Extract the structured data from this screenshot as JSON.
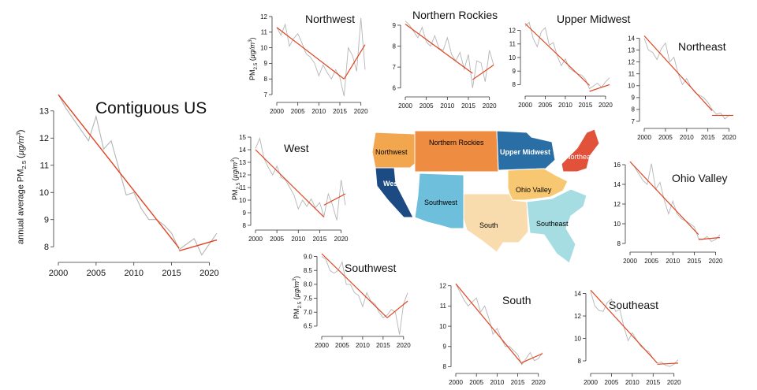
{
  "accents": {
    "trend": "#e0431f",
    "raw": "#b5b5b5",
    "axis": "#333333"
  },
  "ylabel_main": "annual average PM2.5 (µg/m³)",
  "ylabel_small": "PM2.5 (µg/m³)",
  "chart_data": [
    {
      "id": "us",
      "type": "line",
      "title": "Contiguous US",
      "xlabel": "",
      "ylabel": "annual average PM2.5 (µg/m³)",
      "xlim": [
        2000,
        2021
      ],
      "ylim": [
        7.6,
        13.4
      ],
      "xticks": [
        "2000",
        "2005",
        "2010",
        "2015",
        "2020"
      ],
      "yticks": [
        "8",
        "9",
        "10",
        "11",
        "12",
        "13"
      ],
      "x": [
        2000,
        2001,
        2002,
        2003,
        2004,
        2005,
        2006,
        2007,
        2008,
        2009,
        2010,
        2011,
        2012,
        2013,
        2014,
        2015,
        2016,
        2017,
        2018,
        2019,
        2020,
        2021
      ],
      "series": [
        {
          "values": [
            13.6,
            13.1,
            12.7,
            12.3,
            11.9,
            12.8,
            11.6,
            11.9,
            10.9,
            9.9,
            10.0,
            9.4,
            9.0,
            9.0,
            8.8,
            8.5,
            7.9,
            8.1,
            8.3,
            7.7,
            8.1,
            8.5
          ]
        }
      ],
      "trend": [
        {
          "x": [
            2000,
            2016
          ],
          "y": [
            13.6,
            7.95
          ]
        },
        {
          "x": [
            2016,
            2021
          ],
          "y": [
            7.85,
            8.25
          ]
        }
      ]
    },
    {
      "id": "northwest",
      "type": "line",
      "title": "Northwest",
      "ylabel": "PM2.5 (µg/m³)",
      "xlim": [
        2000,
        2021
      ],
      "ylim": [
        6.8,
        12.1
      ],
      "xticks": [
        "2000",
        "2005",
        "2010",
        "2015",
        "2020"
      ],
      "yticks": [
        "7",
        "8",
        "9",
        "10",
        "11",
        "12"
      ],
      "x": [
        2000,
        2001,
        2002,
        2003,
        2004,
        2005,
        2006,
        2007,
        2008,
        2009,
        2010,
        2011,
        2012,
        2013,
        2014,
        2015,
        2016,
        2017,
        2018,
        2019,
        2020,
        2021
      ],
      "series": [
        {
          "values": [
            11.3,
            10.8,
            11.5,
            10.1,
            10.6,
            10.9,
            10.3,
            9.6,
            9.4,
            9.0,
            8.2,
            8.9,
            8.4,
            8.0,
            8.6,
            8.1,
            6.9,
            10.0,
            9.5,
            8.5,
            11.9,
            8.6
          ]
        }
      ],
      "trend": [
        {
          "x": [
            2000,
            2016
          ],
          "y": [
            11.3,
            8.0
          ]
        },
        {
          "x": [
            2016,
            2021
          ],
          "y": [
            8.0,
            10.2
          ]
        }
      ]
    },
    {
      "id": "northern-rockies",
      "type": "line",
      "title": "Northern Rockies",
      "xlim": [
        2000,
        2021
      ],
      "ylim": [
        5.8,
        9.3
      ],
      "xticks": [
        "2000",
        "2005",
        "2010",
        "2015",
        "2020"
      ],
      "yticks": [
        "6",
        "7",
        "8",
        "9"
      ],
      "x": [
        2000,
        2001,
        2002,
        2003,
        2004,
        2005,
        2006,
        2007,
        2008,
        2009,
        2010,
        2011,
        2012,
        2013,
        2014,
        2015,
        2016,
        2017,
        2018,
        2019,
        2020,
        2021
      ],
      "series": [
        {
          "values": [
            9.2,
            9.0,
            8.7,
            8.4,
            8.9,
            8.2,
            8.0,
            8.5,
            7.9,
            7.8,
            8.4,
            7.6,
            7.3,
            7.7,
            6.9,
            7.6,
            6.0,
            7.3,
            7.2,
            6.3,
            7.8,
            7.1
          ]
        }
      ],
      "trend": [
        {
          "x": [
            2000,
            2016
          ],
          "y": [
            9.05,
            6.7
          ]
        },
        {
          "x": [
            2016,
            2021
          ],
          "y": [
            6.4,
            7.1
          ]
        }
      ]
    },
    {
      "id": "upper-midwest",
      "type": "line",
      "title": "Upper Midwest",
      "xlim": [
        2000,
        2021
      ],
      "ylim": [
        7.5,
        12.5
      ],
      "xticks": [
        "2000",
        "2005",
        "2010",
        "2015",
        "2020"
      ],
      "yticks": [
        "8",
        "9",
        "10",
        "11",
        "12"
      ],
      "x": [
        2000,
        2001,
        2002,
        2003,
        2004,
        2005,
        2006,
        2007,
        2008,
        2009,
        2010,
        2011,
        2012,
        2013,
        2014,
        2015,
        2016,
        2017,
        2018,
        2019,
        2020,
        2021
      ],
      "series": [
        {
          "values": [
            12.3,
            12.6,
            11.4,
            10.8,
            11.9,
            12.2,
            10.9,
            11.1,
            10.1,
            9.4,
            9.9,
            9.2,
            9.0,
            8.8,
            8.7,
            8.4,
            7.7,
            7.9,
            8.1,
            7.8,
            8.2,
            8.5
          ]
        }
      ],
      "trend": [
        {
          "x": [
            2000,
            2016
          ],
          "y": [
            12.5,
            7.95
          ]
        },
        {
          "x": [
            2016,
            2021
          ],
          "y": [
            7.5,
            8.0
          ]
        }
      ]
    },
    {
      "id": "northeast",
      "type": "line",
      "title": "Northeast",
      "xlim": [
        2000,
        2021
      ],
      "ylim": [
        6.8,
        14.3
      ],
      "xticks": [
        "2000",
        "2005",
        "2010",
        "2015",
        "2020"
      ],
      "yticks": [
        "7",
        "8",
        "9",
        "10",
        "11",
        "12",
        "13",
        "14"
      ],
      "x": [
        2000,
        2001,
        2002,
        2003,
        2004,
        2005,
        2006,
        2007,
        2008,
        2009,
        2010,
        2011,
        2012,
        2013,
        2014,
        2015,
        2016,
        2017,
        2018,
        2019,
        2020,
        2021
      ],
      "series": [
        {
          "values": [
            14.0,
            13.0,
            12.8,
            12.2,
            13.1,
            13.6,
            12.0,
            12.4,
            11.0,
            10.1,
            10.6,
            9.9,
            9.4,
            9.2,
            9.0,
            8.6,
            8.0,
            7.6,
            7.7,
            7.2,
            7.5,
            7.5
          ]
        }
      ],
      "trend": [
        {
          "x": [
            2000,
            2016
          ],
          "y": [
            14.2,
            7.9
          ]
        },
        {
          "x": [
            2016,
            2021
          ],
          "y": [
            7.5,
            7.5
          ]
        }
      ]
    },
    {
      "id": "west",
      "type": "line",
      "title": "West",
      "xlim": [
        2000,
        2021
      ],
      "ylim": [
        8,
        15
      ],
      "xticks": [
        "2000",
        "2005",
        "2010",
        "2015",
        "2020"
      ],
      "yticks": [
        "8",
        "9",
        "10",
        "11",
        "12",
        "13",
        "14",
        "15"
      ],
      "x": [
        2000,
        2001,
        2002,
        2003,
        2004,
        2005,
        2006,
        2007,
        2008,
        2009,
        2010,
        2011,
        2012,
        2013,
        2014,
        2015,
        2016,
        2017,
        2018,
        2019,
        2020,
        2021
      ],
      "series": [
        {
          "values": [
            14.1,
            14.9,
            13.3,
            12.6,
            12.0,
            12.7,
            11.8,
            11.6,
            11.0,
            10.4,
            9.3,
            10.0,
            9.5,
            10.1,
            9.4,
            9.8,
            8.7,
            10.5,
            9.6,
            8.4,
            11.6,
            9.6
          ]
        }
      ],
      "trend": [
        {
          "x": [
            2000,
            2016
          ],
          "y": [
            14.0,
            8.65
          ]
        },
        {
          "x": [
            2016,
            2021
          ],
          "y": [
            9.6,
            10.5
          ]
        }
      ]
    },
    {
      "id": "ohio-valley",
      "type": "line",
      "title": "Ohio Valley",
      "xlim": [
        2000,
        2021
      ],
      "ylim": [
        7.6,
        16.4
      ],
      "xticks": [
        "2000",
        "2005",
        "2010",
        "2015",
        "2020"
      ],
      "yticks": [
        "8",
        "10",
        "12",
        "14",
        "16"
      ],
      "x": [
        2000,
        2001,
        2002,
        2003,
        2004,
        2005,
        2006,
        2007,
        2008,
        2009,
        2010,
        2011,
        2012,
        2013,
        2014,
        2015,
        2016,
        2017,
        2018,
        2019,
        2020,
        2021
      ],
      "series": [
        {
          "values": [
            16.3,
            15.8,
            15.1,
            14.4,
            14.0,
            16.1,
            13.5,
            14.2,
            12.4,
            11.0,
            12.3,
            11.0,
            10.5,
            10.3,
            10.0,
            9.7,
            8.5,
            8.4,
            8.7,
            8.2,
            8.4,
            8.9
          ]
        }
      ],
      "trend": [
        {
          "x": [
            2000,
            2016
          ],
          "y": [
            16.3,
            8.9
          ]
        },
        {
          "x": [
            2016,
            2021
          ],
          "y": [
            8.4,
            8.6
          ]
        }
      ]
    },
    {
      "id": "southwest",
      "type": "line",
      "title": "Southwest",
      "xlim": [
        2000,
        2021
      ],
      "ylim": [
        6.3,
        9.1
      ],
      "xticks": [
        "2000",
        "2005",
        "2010",
        "2015",
        "2020"
      ],
      "yticks": [
        "6.5",
        "7.0",
        "7.5",
        "8.0",
        "8.5",
        "9.0"
      ],
      "x": [
        2000,
        2001,
        2002,
        2003,
        2004,
        2005,
        2006,
        2007,
        2008,
        2009,
        2010,
        2011,
        2012,
        2013,
        2014,
        2015,
        2016,
        2017,
        2018,
        2019,
        2020,
        2021
      ],
      "series": [
        {
          "values": [
            9.0,
            8.9,
            8.5,
            8.4,
            8.5,
            8.8,
            8.0,
            8.0,
            7.7,
            7.6,
            7.2,
            7.7,
            7.4,
            7.3,
            7.0,
            6.8,
            6.9,
            7.1,
            7.0,
            6.2,
            7.3,
            7.7
          ]
        }
      ],
      "trend": [
        {
          "x": [
            2000,
            2016
          ],
          "y": [
            9.1,
            6.8
          ]
        },
        {
          "x": [
            2016,
            2021
          ],
          "y": [
            6.8,
            7.4
          ]
        }
      ]
    },
    {
      "id": "south",
      "type": "line",
      "title": "South",
      "xlim": [
        2000,
        2021
      ],
      "ylim": [
        7.9,
        12.3
      ],
      "xticks": [
        "2000",
        "2005",
        "2010",
        "2015",
        "2020"
      ],
      "yticks": [
        "8",
        "9",
        "10",
        "11",
        "12"
      ],
      "x": [
        2000,
        2001,
        2002,
        2003,
        2004,
        2005,
        2006,
        2007,
        2008,
        2009,
        2010,
        2011,
        2012,
        2013,
        2014,
        2015,
        2016,
        2017,
        2018,
        2019,
        2020,
        2021
      ],
      "series": [
        {
          "values": [
            12.1,
            11.7,
            11.3,
            11.0,
            11.2,
            11.4,
            10.7,
            11.0,
            10.4,
            9.6,
            9.9,
            9.4,
            9.0,
            9.0,
            8.8,
            8.6,
            8.1,
            8.4,
            8.7,
            8.3,
            8.4,
            8.7
          ]
        }
      ],
      "trend": [
        {
          "x": [
            2000,
            2016
          ],
          "y": [
            12.1,
            8.15
          ]
        },
        {
          "x": [
            2016,
            2021
          ],
          "y": [
            8.2,
            8.65
          ]
        }
      ]
    },
    {
      "id": "southeast",
      "type": "line",
      "title": "Southeast",
      "xlim": [
        2000,
        2021
      ],
      "ylim": [
        7.3,
        14.6
      ],
      "xticks": [
        "2000",
        "2005",
        "2010",
        "2015",
        "2020"
      ],
      "yticks": [
        "8",
        "10",
        "12",
        "14"
      ],
      "x": [
        2000,
        2001,
        2002,
        2003,
        2004,
        2005,
        2006,
        2007,
        2008,
        2009,
        2010,
        2011,
        2012,
        2013,
        2014,
        2015,
        2016,
        2017,
        2018,
        2019,
        2020,
        2021
      ],
      "series": [
        {
          "values": [
            14.2,
            12.9,
            12.5,
            12.4,
            13.2,
            13.5,
            12.4,
            12.6,
            11.0,
            9.8,
            10.5,
            9.9,
            9.3,
            9.0,
            8.8,
            8.2,
            7.8,
            7.9,
            7.6,
            7.5,
            7.7,
            8.1
          ]
        }
      ],
      "trend": [
        {
          "x": [
            2000,
            2016
          ],
          "y": [
            14.3,
            7.8
          ]
        },
        {
          "x": [
            2016,
            2021
          ],
          "y": [
            7.7,
            7.8
          ]
        }
      ]
    }
  ],
  "map": {
    "regions": [
      {
        "name": "Northwest",
        "color": "#f2a64e"
      },
      {
        "name": "Northern Rockies",
        "color": "#ee8c42"
      },
      {
        "name": "Upper Midwest",
        "color": "#2a6ea6"
      },
      {
        "name": "Northeast",
        "color": "#e2513a"
      },
      {
        "name": "West",
        "color": "#1c4b84"
      },
      {
        "name": "Southwest",
        "color": "#6dbfdc"
      },
      {
        "name": "Ohio Valley",
        "color": "#f8c771"
      },
      {
        "name": "South",
        "color": "#f9dcae"
      },
      {
        "name": "Southeast",
        "color": "#a6dde2"
      }
    ]
  }
}
